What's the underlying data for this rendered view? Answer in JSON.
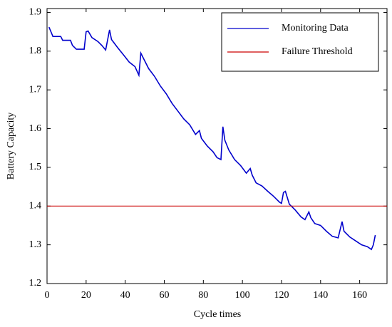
{
  "chart_data": {
    "type": "line",
    "x_label": "Cycle times",
    "y_label": "Battery Capacity",
    "xlim": [
      0,
      174
    ],
    "ylim": [
      1.2,
      1.91
    ],
    "xticks": [
      0,
      20,
      40,
      60,
      80,
      100,
      120,
      140,
      160
    ],
    "yticks": [
      1.2,
      1.3,
      1.4,
      1.5,
      1.6,
      1.7,
      1.8,
      1.9
    ],
    "legend": "upper right",
    "series": [
      {
        "name": "Monitoring Data",
        "color": "#0000cc",
        "x": [
          1,
          2,
          3,
          7,
          8,
          12,
          13,
          15,
          19,
          20,
          21,
          23,
          26,
          28,
          30,
          32,
          33,
          36,
          40,
          42,
          45,
          47,
          48,
          49,
          52,
          55,
          58,
          61,
          64,
          67,
          70,
          73,
          76,
          78,
          79,
          82,
          85,
          87,
          89,
          90,
          91,
          93,
          96,
          99,
          102,
          104,
          105,
          107,
          110,
          113,
          116,
          119,
          120,
          121,
          122,
          124,
          127,
          130,
          132,
          134,
          135,
          137,
          140,
          143,
          146,
          149,
          151,
          152,
          155,
          158,
          161,
          164,
          166,
          167,
          168
        ],
        "values": [
          1.862,
          1.85,
          1.838,
          1.838,
          1.828,
          1.828,
          1.815,
          1.805,
          1.805,
          1.85,
          1.852,
          1.835,
          1.825,
          1.815,
          1.803,
          1.855,
          1.83,
          1.81,
          1.785,
          1.772,
          1.76,
          1.738,
          1.795,
          1.785,
          1.755,
          1.735,
          1.71,
          1.69,
          1.665,
          1.645,
          1.625,
          1.61,
          1.585,
          1.595,
          1.575,
          1.555,
          1.54,
          1.525,
          1.52,
          1.605,
          1.57,
          1.545,
          1.52,
          1.505,
          1.485,
          1.497,
          1.48,
          1.46,
          1.452,
          1.438,
          1.425,
          1.41,
          1.407,
          1.435,
          1.438,
          1.405,
          1.39,
          1.372,
          1.365,
          1.385,
          1.37,
          1.355,
          1.35,
          1.335,
          1.322,
          1.318,
          1.36,
          1.335,
          1.32,
          1.31,
          1.3,
          1.295,
          1.288,
          1.3,
          1.325
        ]
      },
      {
        "name": "Failure Threshold",
        "color": "#cc0000",
        "value": 1.4
      }
    ]
  }
}
